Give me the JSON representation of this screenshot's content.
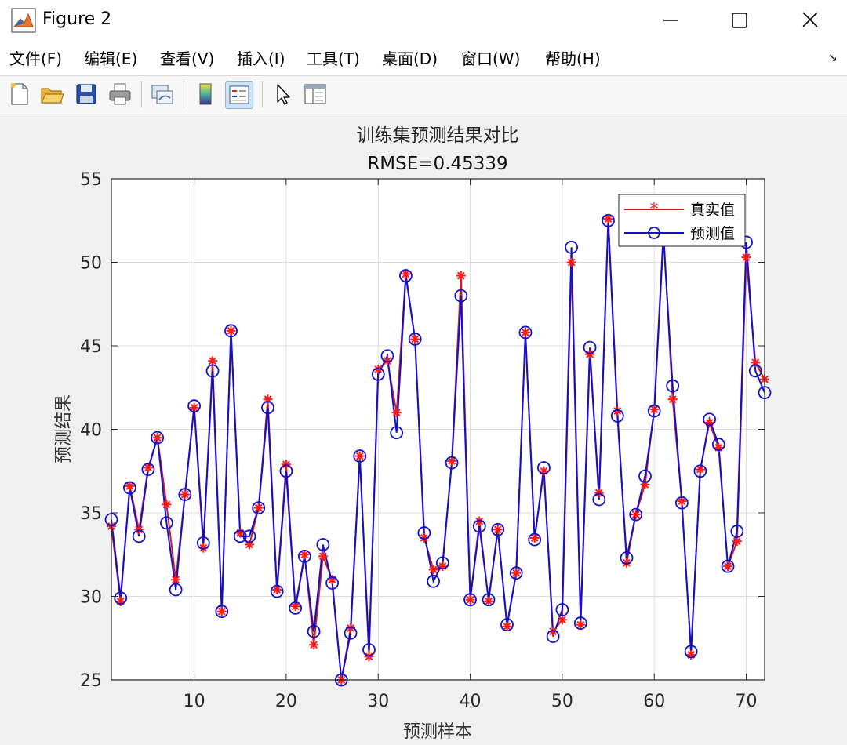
{
  "window": {
    "title": "Figure 2"
  },
  "menu": {
    "items": [
      "文件(F)",
      "编辑(E)",
      "查看(V)",
      "插入(I)",
      "工具(T)",
      "桌面(D)",
      "窗口(W)",
      "帮助(H)"
    ]
  },
  "toolbar": {
    "icons": [
      "new-figure-icon",
      "open-file-icon",
      "save-icon",
      "print-icon",
      "link-plot-icon",
      "colorbar-icon",
      "legend-icon",
      "edit-plot-icon",
      "property-inspector-icon"
    ]
  },
  "colors": {
    "true_series": "#cc1f1f",
    "true_marker": "#ff1a1a",
    "pred_series": "#1111cc",
    "grid": "#dcdcdc",
    "axes_bg": "#ffffff"
  },
  "chart_data": {
    "type": "line",
    "title": "训练集预测结果对比",
    "subtitle": "RMSE=0.45339",
    "xlabel": "预测样本",
    "ylabel": "预测结果",
    "xlim": [
      1,
      72
    ],
    "ylim": [
      25,
      55
    ],
    "xticks": [
      10,
      20,
      30,
      40,
      50,
      60,
      70
    ],
    "yticks": [
      25,
      30,
      35,
      40,
      45,
      50,
      55
    ],
    "grid": true,
    "legend_position": "top-right",
    "x": [
      1,
      2,
      3,
      4,
      5,
      6,
      7,
      8,
      9,
      10,
      11,
      12,
      13,
      14,
      15,
      16,
      17,
      18,
      19,
      20,
      21,
      22,
      23,
      24,
      25,
      26,
      27,
      28,
      29,
      30,
      31,
      32,
      33,
      34,
      35,
      36,
      37,
      38,
      39,
      40,
      41,
      42,
      43,
      44,
      45,
      46,
      47,
      48,
      49,
      50,
      51,
      52,
      53,
      54,
      55,
      56,
      57,
      58,
      59,
      60,
      61,
      62,
      63,
      64,
      65,
      66,
      67,
      68,
      69,
      70,
      71,
      72
    ],
    "series": [
      {
        "name": "真实值",
        "marker": "asterisk",
        "values": [
          34.2,
          29.7,
          36.6,
          34.0,
          37.7,
          39.5,
          35.5,
          31.0,
          36.1,
          41.3,
          32.9,
          44.1,
          29.1,
          45.9,
          33.8,
          33.1,
          35.3,
          41.8,
          30.4,
          37.9,
          29.4,
          32.5,
          27.1,
          32.4,
          31.0,
          25.0,
          28.1,
          38.4,
          26.4,
          43.6,
          44.1,
          41.0,
          49.3,
          45.4,
          33.5,
          31.6,
          31.8,
          38.1,
          49.2,
          29.8,
          34.5,
          29.7,
          34.0,
          28.2,
          31.4,
          45.8,
          33.5,
          37.5,
          27.9,
          28.6,
          50.0,
          28.3,
          44.5,
          36.2,
          52.6,
          41.1,
          32.0,
          34.9,
          36.7,
          41.2,
          51.9,
          41.8,
          35.7,
          26.5,
          37.6,
          40.4,
          38.9,
          31.8,
          33.3,
          50.3,
          44.0,
          43.0
        ]
      },
      {
        "name": "预测值",
        "marker": "circle",
        "values": [
          34.6,
          29.9,
          36.5,
          33.6,
          37.6,
          39.5,
          34.4,
          30.4,
          36.1,
          41.4,
          33.2,
          43.5,
          29.1,
          45.9,
          33.6,
          33.6,
          35.3,
          41.3,
          30.3,
          37.5,
          29.3,
          32.4,
          27.9,
          33.1,
          30.8,
          25.0,
          27.8,
          38.4,
          26.8,
          43.3,
          44.4,
          39.8,
          49.2,
          45.4,
          33.8,
          30.9,
          32.0,
          38.0,
          48.0,
          29.8,
          34.2,
          29.8,
          34.0,
          28.3,
          31.4,
          45.8,
          33.4,
          37.7,
          27.6,
          29.2,
          50.9,
          28.4,
          44.9,
          35.8,
          52.5,
          40.8,
          32.3,
          34.9,
          37.2,
          41.1,
          51.5,
          42.6,
          35.6,
          26.7,
          37.5,
          40.6,
          39.1,
          31.8,
          33.9,
          51.2,
          43.5,
          42.2
        ]
      }
    ]
  }
}
